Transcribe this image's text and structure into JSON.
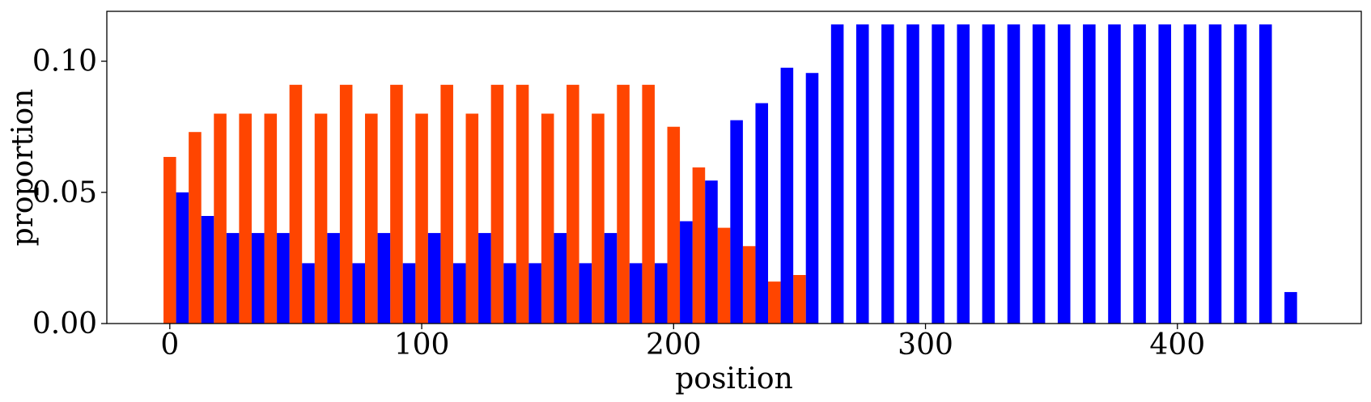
{
  "chart_data": {
    "type": "bar",
    "xlabel": "position",
    "ylabel": "proportion",
    "xlim": [
      -25,
      473
    ],
    "ylim": [
      0,
      0.119
    ],
    "xticks": [
      0,
      100,
      200,
      300,
      400
    ],
    "xtick_labels": [
      "0",
      "100",
      "200",
      "300",
      "400"
    ],
    "yticks": [
      0.0,
      0.05,
      0.1
    ],
    "ytick_labels": [
      "0.00",
      "0.05",
      "0.10"
    ],
    "grid": false,
    "legend": "none",
    "bar_width": 5,
    "series": [
      {
        "color": "#ff4500",
        "x": [
          0,
          10,
          20,
          30,
          40,
          50,
          60,
          70,
          80,
          90,
          100,
          110,
          120,
          130,
          140,
          150,
          160,
          170,
          180,
          190,
          200,
          210,
          220,
          230,
          240,
          250
        ],
        "values": [
          0.0635,
          0.073,
          0.08,
          0.08,
          0.08,
          0.091,
          0.08,
          0.091,
          0.08,
          0.091,
          0.08,
          0.091,
          0.08,
          0.091,
          0.091,
          0.08,
          0.091,
          0.08,
          0.091,
          0.091,
          0.075,
          0.0595,
          0.0365,
          0.0295,
          0.016,
          0.0185
        ]
      },
      {
        "color": "#0000ff",
        "x": [
          5,
          15,
          25,
          35,
          45,
          55,
          65,
          75,
          85,
          95,
          105,
          115,
          125,
          135,
          145,
          155,
          165,
          175,
          185,
          195,
          205,
          215,
          225,
          235,
          245,
          255,
          265,
          275,
          285,
          295,
          305,
          315,
          325,
          335,
          345,
          355,
          365,
          375,
          385,
          395,
          405,
          415,
          425,
          435,
          445
        ],
        "values": [
          0.05,
          0.041,
          0.0345,
          0.0345,
          0.0345,
          0.023,
          0.0345,
          0.023,
          0.0345,
          0.023,
          0.0345,
          0.023,
          0.0345,
          0.023,
          0.023,
          0.0345,
          0.023,
          0.0345,
          0.023,
          0.023,
          0.039,
          0.0545,
          0.0775,
          0.084,
          0.0975,
          0.0955,
          0.114,
          0.114,
          0.114,
          0.114,
          0.114,
          0.114,
          0.114,
          0.114,
          0.114,
          0.114,
          0.114,
          0.114,
          0.114,
          0.114,
          0.114,
          0.114,
          0.114,
          0.114,
          0.012
        ]
      }
    ]
  }
}
